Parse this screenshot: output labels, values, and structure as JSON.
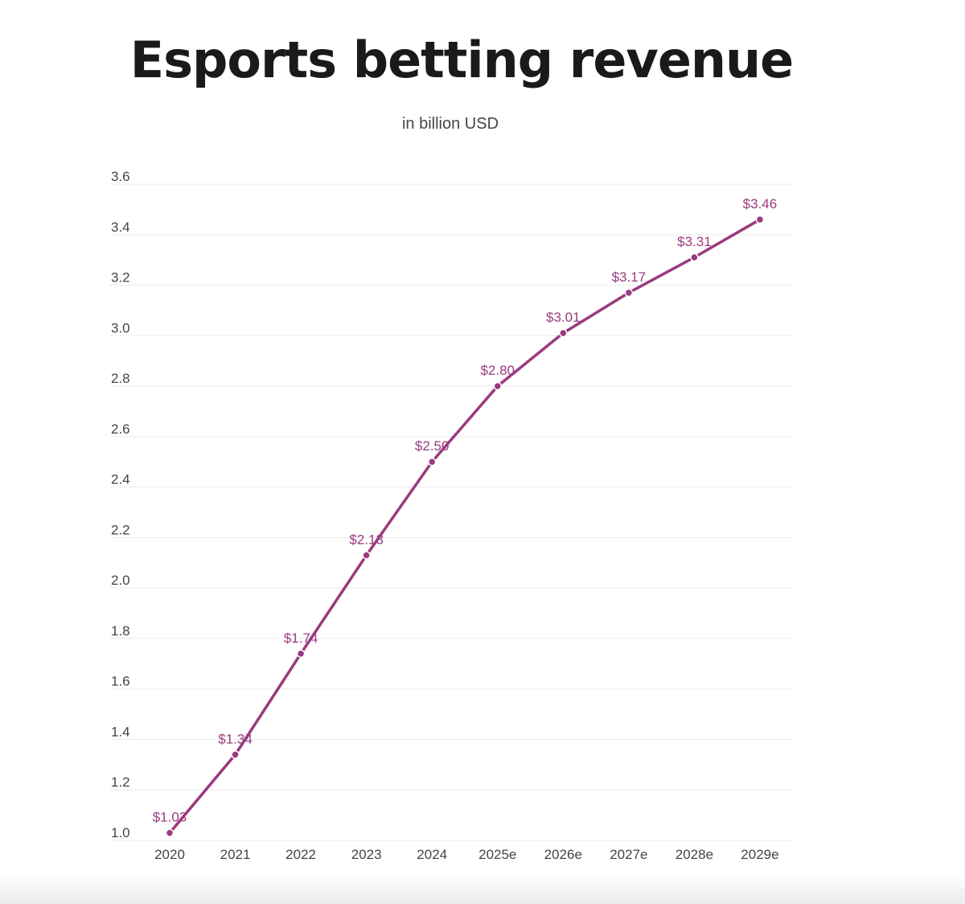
{
  "chart_data": {
    "type": "line",
    "title": "Esports betting revenue",
    "subtitle": "in billion USD",
    "categories": [
      "2020",
      "2021",
      "2022",
      "2023",
      "2024",
      "2025e",
      "2026e",
      "2027e",
      "2028e",
      "2029e"
    ],
    "values": [
      1.03,
      1.34,
      1.74,
      2.13,
      2.5,
      2.8,
      3.01,
      3.17,
      3.31,
      3.46
    ],
    "data_labels": [
      "$1.03",
      "$1.34",
      "$1.74",
      "$2.13",
      "$2.50",
      "$2.80",
      "$3.01",
      "$3.17",
      "$3.31",
      "$3.46"
    ],
    "ylim": [
      1.0,
      3.6
    ],
    "yticks": [
      "1.0",
      "1.2",
      "1.4",
      "1.6",
      "1.8",
      "2.0",
      "2.2",
      "2.4",
      "2.6",
      "2.8",
      "3.0",
      "3.2",
      "3.4",
      "3.6"
    ],
    "grid": true,
    "line_color": "#9b3a7e"
  }
}
